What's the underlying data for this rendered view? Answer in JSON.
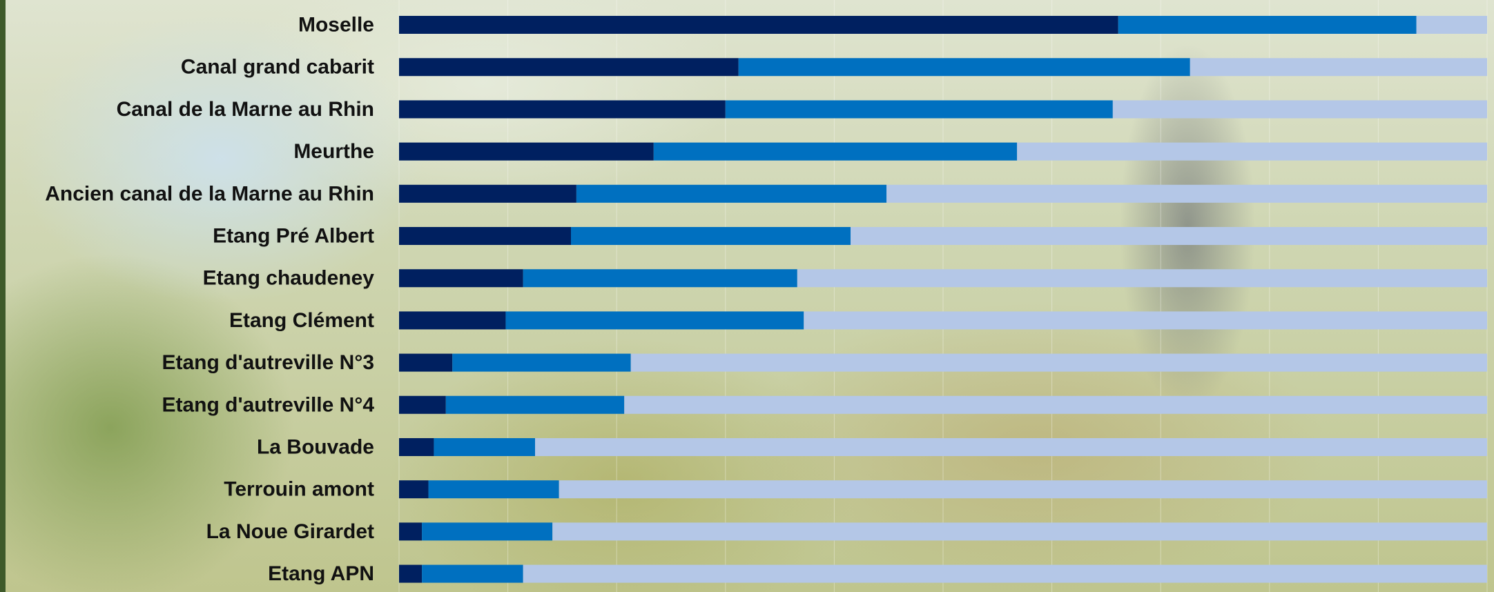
{
  "chart_data": {
    "type": "bar",
    "stacked": true,
    "orientation": "horizontal",
    "title": "",
    "xlabel": "",
    "ylabel": "",
    "xlim": [
      0,
      100
    ],
    "grid": true,
    "legend": "none",
    "categories": [
      "Moselle",
      "Canal grand cabarit",
      "Canal de la Marne au Rhin",
      "Meurthe",
      "Ancien canal de la Marne au Rhin",
      "Etang Pré Albert",
      "Etang chaudeney",
      "Etang Clément",
      "Etang d'autreville N°3",
      "Etang d'autreville N°4",
      "La Bouvade",
      "Terrouin amont",
      "La Noue Girardet",
      "Etang APN"
    ],
    "series": [
      {
        "color": "#002060",
        "values": [
          66.1,
          31.2,
          30.0,
          23.4,
          16.3,
          15.8,
          11.4,
          9.8,
          4.9,
          4.3,
          3.2,
          2.7,
          2.1,
          2.1
        ]
      },
      {
        "color": "#0070c0",
        "values": [
          27.4,
          41.5,
          35.6,
          33.4,
          28.5,
          25.7,
          25.2,
          27.4,
          16.4,
          16.4,
          9.3,
          12.0,
          12.0,
          9.3
        ]
      },
      {
        "color": "#b4c7e7",
        "values": [
          6.5,
          27.3,
          34.4,
          43.2,
          55.2,
          58.5,
          63.4,
          62.8,
          78.7,
          79.3,
          87.5,
          85.3,
          85.9,
          88.6
        ]
      }
    ]
  }
}
